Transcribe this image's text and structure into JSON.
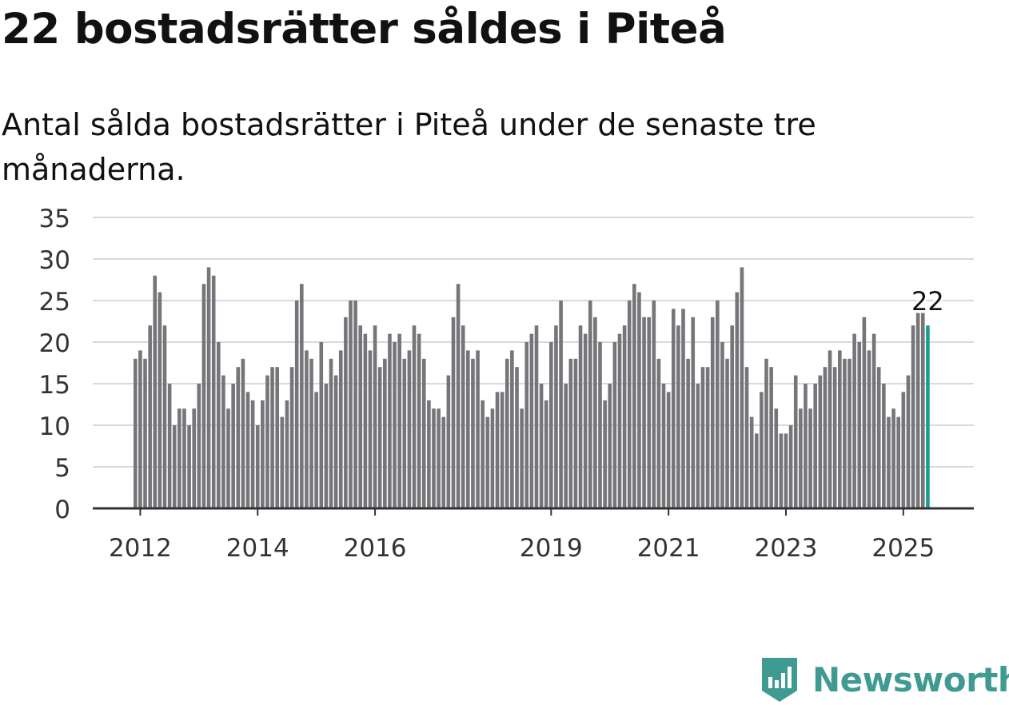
{
  "title": "22 bostadsrätter såldes i Piteå",
  "subtitle": "Antal sålda bostadsrätter i Piteå under de senaste tre månaderna.",
  "brand": {
    "name": "Newsworthy",
    "color": "#3f9b92",
    "icon": "newsworthy-logo-icon"
  },
  "colors": {
    "bar": "#75757a",
    "highlight": "#1a9c92",
    "grid": "#d9d9d9",
    "axis": "#333333"
  },
  "chart_data": {
    "type": "bar",
    "title": "22 bostadsrätter såldes i Piteå",
    "xlabel": "",
    "ylabel": "",
    "ylim": [
      0,
      35
    ],
    "yticks": [
      "0",
      "5",
      "10",
      "15",
      "20",
      "25",
      "30",
      "35"
    ],
    "xticks": [
      {
        "label": "2012",
        "at": "2012-01"
      },
      {
        "label": "2014",
        "at": "2014-01"
      },
      {
        "label": "2016",
        "at": "2016-01"
      },
      {
        "label": "2019",
        "at": "2019-01"
      },
      {
        "label": "2021",
        "at": "2021-01"
      },
      {
        "label": "2023",
        "at": "2023-01"
      },
      {
        "label": "2025",
        "at": "2025-01"
      }
    ],
    "start_month": "2011-12",
    "grid": true,
    "legend": "none",
    "annotation": {
      "text": "22",
      "at": "last"
    },
    "values": [
      18,
      19,
      18,
      22,
      28,
      26,
      22,
      15,
      10,
      12,
      12,
      10,
      12,
      15,
      27,
      29,
      28,
      20,
      16,
      12,
      15,
      17,
      18,
      14,
      13,
      10,
      13,
      16,
      17,
      17,
      11,
      13,
      17,
      25,
      27,
      19,
      18,
      14,
      20,
      15,
      18,
      16,
      19,
      23,
      25,
      25,
      22,
      21,
      19,
      22,
      17,
      18,
      21,
      20,
      21,
      18,
      19,
      22,
      21,
      18,
      13,
      12,
      12,
      11,
      16,
      23,
      27,
      22,
      19,
      18,
      19,
      13,
      11,
      12,
      14,
      14,
      18,
      19,
      17,
      12,
      20,
      21,
      22,
      15,
      13,
      20,
      22,
      25,
      15,
      18,
      18,
      22,
      21,
      25,
      23,
      20,
      13,
      15,
      20,
      21,
      22,
      25,
      27,
      26,
      23,
      23,
      25,
      18,
      15,
      14,
      24,
      22,
      24,
      18,
      23,
      15,
      17,
      17,
      23,
      25,
      20,
      18,
      22,
      26,
      29,
      17,
      11,
      9,
      14,
      18,
      17,
      12,
      9,
      9,
      10,
      16,
      12,
      15,
      12,
      15,
      16,
      17,
      19,
      17,
      19,
      18,
      18,
      21,
      20,
      23,
      19,
      21,
      17,
      15,
      11,
      12,
      11,
      14,
      16,
      22,
      23.5,
      23.5,
      22
    ]
  }
}
